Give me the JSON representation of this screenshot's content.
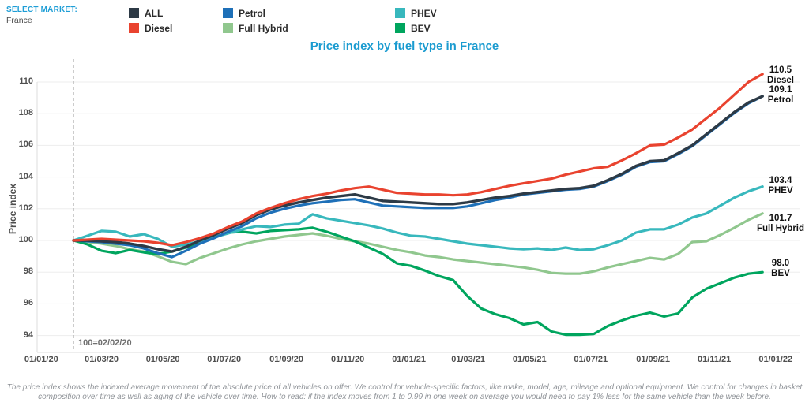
{
  "header": {
    "select_market_label": "SELECT MARKET:",
    "market_value": "France"
  },
  "legend": [
    {
      "label": "ALL",
      "color": "#2d3a46"
    },
    {
      "label": "Diesel",
      "color": "#e9432f"
    },
    {
      "label": "Petrol",
      "color": "#1e70b8"
    },
    {
      "label": "Full Hybrid",
      "color": "#90c78e"
    },
    {
      "label": "PHEV",
      "color": "#38b8bd"
    },
    {
      "label": "BEV",
      "color": "#00a55e"
    }
  ],
  "title": "Price index by fuel type in France",
  "chart_data": {
    "type": "line",
    "title": "Price index by fuel type in France",
    "xlabel": "",
    "ylabel": "Price index",
    "ylim": [
      93,
      111.5
    ],
    "grid": "horizontal",
    "legend_position": "top",
    "baseline_note": "100=02/02/20",
    "baseline_date": "02/02/20",
    "y_ticks": [
      94,
      96,
      98,
      100,
      102,
      104,
      106,
      108,
      110
    ],
    "x_ticks": [
      {
        "label": "01/01/20",
        "week": -4.57
      },
      {
        "label": "01/03/20",
        "week": 4.0
      },
      {
        "label": "01/05/20",
        "week": 12.71
      },
      {
        "label": "01/07/20",
        "week": 21.43
      },
      {
        "label": "01/09/20",
        "week": 30.29
      },
      {
        "label": "01/11/20",
        "week": 39.0
      },
      {
        "label": "01/01/21",
        "week": 47.71
      },
      {
        "label": "01/03/21",
        "week": 56.14
      },
      {
        "label": "01/05/21",
        "week": 64.86
      },
      {
        "label": "01/07/21",
        "week": 73.57
      },
      {
        "label": "01/09/21",
        "week": 82.43
      },
      {
        "label": "01/11/21",
        "week": 91.14
      },
      {
        "label": "01/01/22",
        "week": 99.86
      }
    ],
    "weeks_since_baseline": [
      0,
      2,
      4,
      6,
      8,
      10,
      12,
      14,
      16,
      18,
      20,
      22,
      24,
      26,
      28,
      30,
      32,
      34,
      36,
      38,
      40,
      42,
      44,
      46,
      48,
      50,
      52,
      54,
      56,
      58,
      60,
      62,
      64,
      66,
      68,
      70,
      72,
      74,
      76,
      78,
      80,
      82,
      84,
      86,
      88,
      90,
      92,
      94,
      96,
      98
    ],
    "series": [
      {
        "name": "Full Hybrid",
        "color": "#90c78e",
        "stroke_width": 3.2,
        "end_value": 101.7,
        "end_label": "Full Hybrid",
        "label_dy": 13,
        "values": [
          100,
          99.9,
          99.8,
          99.65,
          99.45,
          99.3,
          99,
          98.65,
          98.5,
          98.9,
          99.2,
          99.5,
          99.75,
          99.95,
          100.1,
          100.25,
          100.35,
          100.45,
          100.3,
          100.1,
          99.95,
          99.8,
          99.6,
          99.4,
          99.25,
          99.05,
          98.95,
          98.8,
          98.7,
          98.6,
          98.5,
          98.4,
          98.3,
          98.15,
          97.95,
          97.9,
          97.9,
          98.05,
          98.3,
          98.5,
          98.7,
          98.9,
          98.8,
          99.15,
          99.9,
          99.95,
          100.35,
          100.8,
          101.3,
          101.7
        ]
      },
      {
        "name": "BEV",
        "color": "#00a55e",
        "stroke_width": 3.2,
        "end_value": 98.0,
        "end_label": "BEV",
        "label_dy": -4,
        "values": [
          100,
          99.75,
          99.35,
          99.2,
          99.4,
          99.25,
          99.15,
          99.3,
          99.55,
          99.85,
          100.2,
          100.5,
          100.55,
          100.45,
          100.6,
          100.65,
          100.7,
          100.8,
          100.55,
          100.25,
          99.95,
          99.55,
          99.15,
          98.55,
          98.4,
          98.1,
          97.75,
          97.5,
          96.5,
          95.7,
          95.35,
          95.1,
          94.7,
          94.85,
          94.25,
          94.05,
          94.05,
          94.1,
          94.6,
          94.95,
          95.25,
          95.45,
          95.2,
          95.4,
          96.4,
          96.95,
          97.3,
          97.65,
          97.9,
          98
        ]
      },
      {
        "name": "PHEV",
        "color": "#38b8bd",
        "stroke_width": 3.2,
        "end_value": 103.4,
        "end_label": "PHEV",
        "label_dy": -1,
        "values": [
          100,
          100.3,
          100.6,
          100.55,
          100.25,
          100.4,
          100.1,
          99.6,
          99.75,
          99.95,
          100.2,
          100.45,
          100.7,
          100.9,
          100.85,
          101,
          101.05,
          101.65,
          101.4,
          101.25,
          101.1,
          100.95,
          100.75,
          100.5,
          100.3,
          100.25,
          100.1,
          99.95,
          99.8,
          99.7,
          99.6,
          99.5,
          99.45,
          99.5,
          99.4,
          99.55,
          99.4,
          99.45,
          99.7,
          100,
          100.5,
          100.7,
          100.7,
          101,
          101.45,
          101.7,
          102.2,
          102.7,
          103.1,
          103.4
        ]
      },
      {
        "name": "Petrol",
        "color": "#1e70b8",
        "stroke_width": 3.2,
        "end_value": 109.1,
        "end_label": "Petrol",
        "label_dy": -1,
        "values": [
          100,
          99.95,
          99.9,
          99.8,
          99.7,
          99.5,
          99.2,
          98.95,
          99.35,
          99.8,
          100.15,
          100.55,
          100.9,
          101.4,
          101.75,
          102,
          102.2,
          102.35,
          102.45,
          102.55,
          102.6,
          102.4,
          102.2,
          102.15,
          102.1,
          102.05,
          102.05,
          102.05,
          102.15,
          102.35,
          102.55,
          102.7,
          102.9,
          103,
          103.1,
          103.2,
          103.25,
          103.4,
          103.75,
          104.15,
          104.65,
          104.95,
          105,
          105.45,
          105.95,
          106.65,
          107.35,
          108.05,
          108.65,
          109.1
        ]
      },
      {
        "name": "ALL",
        "color": "#2d3a46",
        "stroke_width": 3.4,
        "end_value": null,
        "end_label": null,
        "label_dy": 0,
        "values": [
          100,
          100,
          99.95,
          99.9,
          99.8,
          99.65,
          99.45,
          99.3,
          99.6,
          100,
          100.35,
          100.75,
          101.1,
          101.6,
          101.95,
          102.2,
          102.4,
          102.55,
          102.7,
          102.8,
          102.9,
          102.7,
          102.5,
          102.45,
          102.4,
          102.35,
          102.3,
          102.3,
          102.4,
          102.55,
          102.7,
          102.8,
          102.95,
          103.05,
          103.15,
          103.25,
          103.3,
          103.45,
          103.8,
          104.2,
          104.7,
          105,
          105.05,
          105.5,
          106,
          106.7,
          107.4,
          108.1,
          108.7,
          109.1
        ]
      },
      {
        "name": "Diesel",
        "color": "#e9432f",
        "stroke_width": 3.2,
        "end_value": 110.5,
        "end_label": "Diesel",
        "label_dy": 2,
        "values": [
          100,
          100.05,
          100.1,
          100.05,
          100,
          99.95,
          99.85,
          99.7,
          99.9,
          100.15,
          100.45,
          100.85,
          101.2,
          101.7,
          102.05,
          102.35,
          102.6,
          102.8,
          102.95,
          103.15,
          103.3,
          103.4,
          103.2,
          103,
          102.95,
          102.9,
          102.9,
          102.85,
          102.9,
          103.05,
          103.25,
          103.45,
          103.6,
          103.75,
          103.9,
          104.15,
          104.35,
          104.55,
          104.65,
          105.05,
          105.5,
          106,
          106.05,
          106.5,
          107,
          107.7,
          108.4,
          109.2,
          110,
          110.5
        ]
      }
    ]
  },
  "footer": {
    "disclaimer": "The price index shows the indexed average movement of the absolute price of all vehicles on offer. We control for vehicle-specific factors, like make, model, age, mileage and optional equipment. We control for changes in basket composition over time as well as aging of the vehicle over time. How to read: if the index moves from 1 to 0.99 in one week on average you would need to pay 1% less for the same vehicle than the week before."
  }
}
